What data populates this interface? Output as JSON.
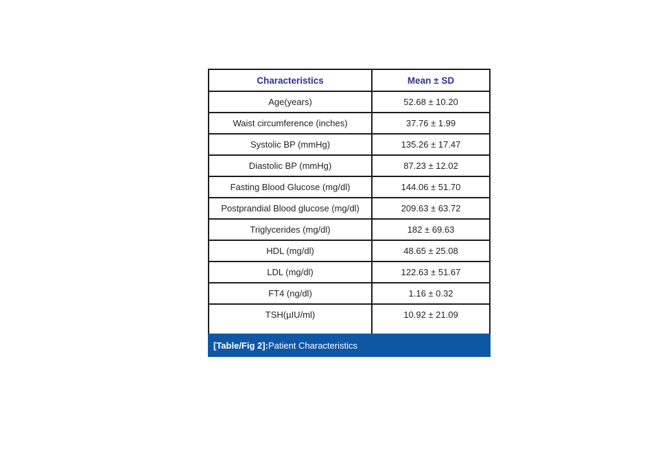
{
  "colors": {
    "header_text": "#2e3192",
    "caption_bg": "#0e57a4",
    "border": "#1c1c1c",
    "body_text": "#231f20",
    "caption_text": "#ffffff"
  },
  "table": {
    "columns": [
      "Characteristics",
      "Mean ± SD"
    ],
    "rows": [
      {
        "label": "Age(years)",
        "value": "52.68 ± 10.20"
      },
      {
        "label": "Waist circumference (inches)",
        "value": "37.76 ± 1.99"
      },
      {
        "label": "Systolic BP (mmHg)",
        "value": "135.26 ± 17.47"
      },
      {
        "label": "Diastolic BP (mmHg)",
        "value": "87.23 ± 12.02"
      },
      {
        "label": "Fasting Blood Glucose (mg/dl)",
        "value": "144.06 ± 51.70"
      },
      {
        "label": "Postprandial Blood glucose (mg/dl)",
        "value": "209.63 ± 63.72"
      },
      {
        "label": "Triglycerides (mg/dl)",
        "value": "182 ± 69.63"
      },
      {
        "label": "HDL (mg/dl)",
        "value": "48.65 ± 25.08"
      },
      {
        "label": "LDL (mg/dl)",
        "value": "122.63 ± 51.67"
      },
      {
        "label": "FT4 (ng/dl)",
        "value": "1.16 ± 0.32"
      },
      {
        "label": "TSH(µIU/ml)",
        "value": "10.92 ± 21.09"
      }
    ],
    "caption_label": "[Table/Fig 2]:",
    "caption_text": "Patient Characteristics"
  }
}
